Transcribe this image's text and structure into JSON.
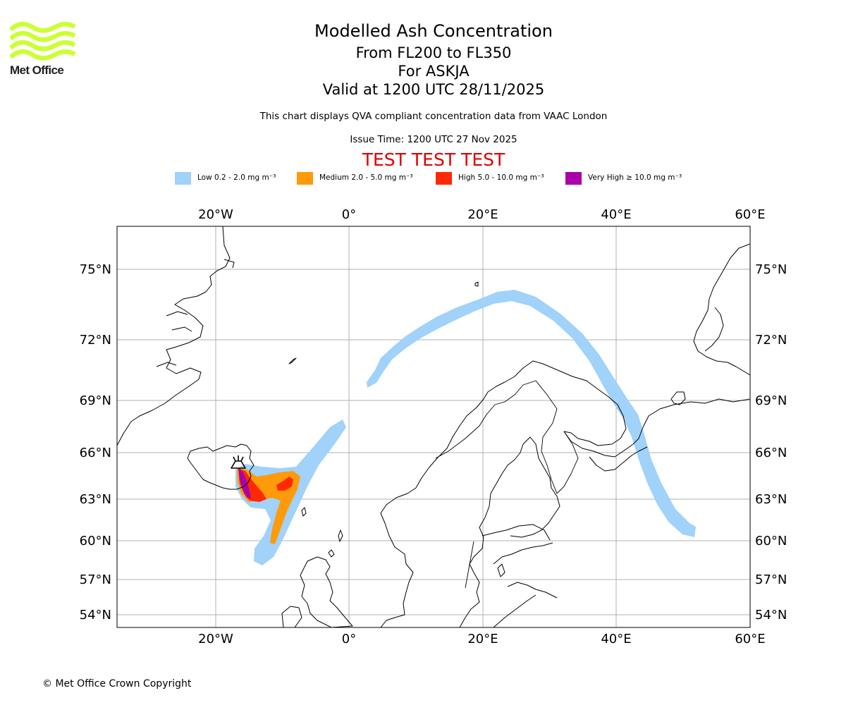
{
  "logo": {
    "text": "Met Office",
    "color": "#ccff33"
  },
  "header": {
    "title": "Modelled Ash Concentration",
    "flight_levels": "From FL200 to FL350",
    "volcano": "For ASKJA",
    "valid": "Valid at 1200 UTC 28/11/2025",
    "subtitle": "This chart displays QVA compliant concentration data from VAAC London",
    "issue_time": "Issue Time: 1200 UTC 27 Nov 2025",
    "test_banner": "TEST TEST TEST"
  },
  "legend": [
    {
      "label": "Low 0.2 - 2.0 mg m⁻³",
      "color": "#a0d2fa"
    },
    {
      "label": "Medium 2.0 - 5.0 mg m⁻³",
      "color": "#ff9a0a"
    },
    {
      "label": "High 5.0 - 10.0 mg m⁻³",
      "color": "#ff2a05"
    },
    {
      "label": "Very High  ≥  10.0 mg m⁻³",
      "color": "#aa00aa"
    }
  ],
  "map": {
    "lon_labels": [
      "20°W",
      "0°",
      "20°E",
      "40°E",
      "60°E"
    ],
    "lat_labels": [
      "75°N",
      "72°N",
      "69°N",
      "66°N",
      "63°N",
      "60°N",
      "57°N",
      "54°N"
    ],
    "gridline_color": "#b0b0b0",
    "coastline_color": "#000000"
  },
  "footer": {
    "copyright": "© Met Office Crown Copyright"
  }
}
